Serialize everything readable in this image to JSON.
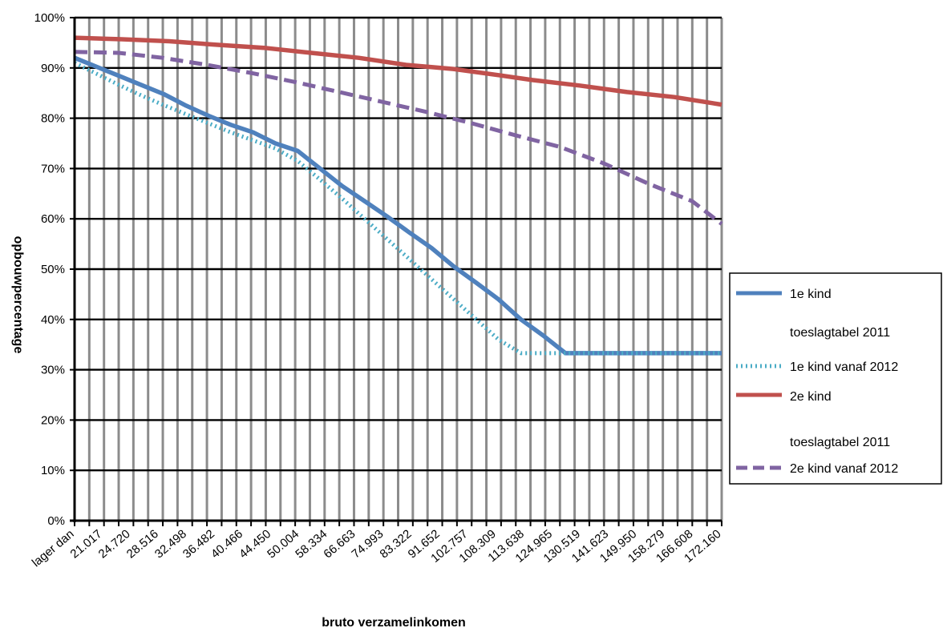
{
  "chart_data": {
    "type": "line",
    "xlabel": "bruto verzamelinkomen",
    "ylabel": "opbouwpercentage",
    "ylim": [
      0,
      1
    ],
    "y_ticks": [
      "0%",
      "10%",
      "20%",
      "30%",
      "40%",
      "50%",
      "60%",
      "70%",
      "80%",
      "90%",
      "100%"
    ],
    "grid": true,
    "legend_position": "right",
    "x_ticks": [
      "lager dan",
      "21.017",
      "24.720",
      "28.516",
      "32.498",
      "36.482",
      "40.466",
      "44.450",
      "50.004",
      "58.334",
      "66.663",
      "74.993",
      "83.322",
      "91.652",
      "102.757",
      "108.309",
      "113.638",
      "124.965",
      "130.519",
      "141.623",
      "149.950",
      "158.279",
      "166.608",
      "172.160"
    ],
    "x_tick_index": [
      0,
      1,
      2,
      3,
      4,
      5,
      6,
      7,
      8,
      9,
      10,
      11,
      12,
      13,
      14,
      15,
      16,
      17,
      18,
      19,
      20,
      21,
      22,
      23
    ],
    "categories_count": 29,
    "series": [
      {
        "name": "1e kind toeslagtabel 2011",
        "color": "#4f81bd",
        "style": "solid",
        "points": [
          [
            0,
            0.92
          ],
          [
            1,
            0.902
          ],
          [
            2,
            0.884
          ],
          [
            3,
            0.866
          ],
          [
            4,
            0.848
          ],
          [
            5,
            0.825
          ],
          [
            6,
            0.805
          ],
          [
            7,
            0.787
          ],
          [
            8,
            0.772
          ],
          [
            9,
            0.75
          ],
          [
            10,
            0.735
          ],
          [
            11,
            0.7
          ],
          [
            12,
            0.665
          ],
          [
            13,
            0.635
          ],
          [
            14,
            0.605
          ],
          [
            15,
            0.573
          ],
          [
            16,
            0.542
          ],
          [
            17,
            0.505
          ],
          [
            18,
            0.473
          ],
          [
            19,
            0.44
          ],
          [
            20,
            0.4
          ],
          [
            21,
            0.368
          ],
          [
            22,
            0.333
          ],
          [
            23,
            0.333
          ],
          [
            24,
            0.333
          ],
          [
            25,
            0.333
          ],
          [
            26,
            0.333
          ],
          [
            27,
            0.333
          ],
          [
            28,
            0.333
          ],
          [
            29,
            0.333
          ]
        ]
      },
      {
        "name": "1e kind vanaf 2012",
        "color": "#4bacc6",
        "style": "dotted",
        "points": [
          [
            0,
            0.91
          ],
          [
            1,
            0.888
          ],
          [
            2,
            0.866
          ],
          [
            3,
            0.845
          ],
          [
            4,
            0.826
          ],
          [
            5,
            0.808
          ],
          [
            6,
            0.79
          ],
          [
            7,
            0.772
          ],
          [
            8,
            0.756
          ],
          [
            9,
            0.74
          ],
          [
            10,
            0.715
          ],
          [
            11,
            0.678
          ],
          [
            12,
            0.64
          ],
          [
            13,
            0.6
          ],
          [
            14,
            0.56
          ],
          [
            15,
            0.52
          ],
          [
            16,
            0.48
          ],
          [
            17,
            0.44
          ],
          [
            18,
            0.4
          ],
          [
            19,
            0.36
          ],
          [
            20,
            0.333
          ],
          [
            21,
            0.333
          ],
          [
            22,
            0.333
          ],
          [
            23,
            0.333
          ],
          [
            24,
            0.333
          ],
          [
            25,
            0.333
          ],
          [
            26,
            0.333
          ],
          [
            27,
            0.333
          ],
          [
            28,
            0.333
          ],
          [
            29,
            0.333
          ]
        ]
      },
      {
        "name": "2e kind toeslagtabel 2011",
        "color": "#c0504d",
        "style": "solid",
        "points": [
          [
            0,
            0.96
          ],
          [
            3,
            0.957
          ],
          [
            6,
            0.953
          ],
          [
            9,
            0.946
          ],
          [
            12,
            0.94
          ],
          [
            15,
            0.93
          ],
          [
            18,
            0.92
          ],
          [
            21,
            0.906
          ],
          [
            24,
            0.898
          ],
          [
            27,
            0.885
          ],
          [
            29,
            0.876
          ],
          [
            32,
            0.865
          ],
          [
            35,
            0.852
          ],
          [
            38,
            0.842
          ],
          [
            41,
            0.827
          ]
        ]
      },
      {
        "name": "2e kind vanaf 2012",
        "color": "#8064a2",
        "style": "dashed",
        "points": [
          [
            0,
            0.932
          ],
          [
            3,
            0.93
          ],
          [
            6,
            0.92
          ],
          [
            9,
            0.906
          ],
          [
            12,
            0.89
          ],
          [
            15,
            0.872
          ],
          [
            18,
            0.852
          ],
          [
            21,
            0.832
          ],
          [
            24,
            0.812
          ],
          [
            27,
            0.79
          ],
          [
            30,
            0.766
          ],
          [
            33,
            0.743
          ],
          [
            36,
            0.71
          ],
          [
            39,
            0.67
          ],
          [
            42,
            0.635
          ],
          [
            44,
            0.59
          ]
        ]
      }
    ]
  },
  "legend": {
    "items": [
      {
        "line1": "1e kind",
        "line2": "toeslagtabel 2011"
      },
      {
        "line1": "1e kind vanaf 2012",
        "line2": ""
      },
      {
        "line1": "2e kind",
        "line2": "toeslagtabel 2011"
      },
      {
        "line1": "2e kind vanaf 2012",
        "line2": ""
      }
    ]
  }
}
